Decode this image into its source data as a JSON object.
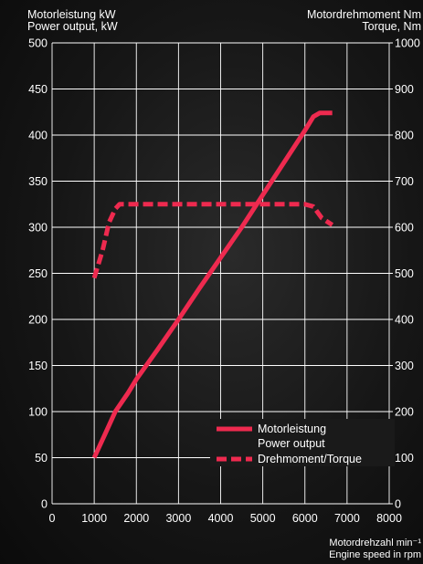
{
  "left_axis_title_line1": "Motorleistung kW",
  "left_axis_title_line2": "Power output, kW",
  "right_axis_title_line1": "Motordrehmoment Nm",
  "right_axis_title_line2": "Torque, Nm",
  "x_axis_title_line1": "Motordrehzahl min⁻¹",
  "x_axis_title_line2": "Engine speed in rpm",
  "colors": {
    "series": "#ee2a4f",
    "grid": "#ffffff",
    "text": "#ffffff"
  },
  "chart_data": {
    "type": "line",
    "xlim": [
      0,
      8000
    ],
    "ylim_left": [
      0,
      500
    ],
    "ylim_right": [
      0,
      1000
    ],
    "x_ticks": [
      "0",
      "1000",
      "2000",
      "3000",
      "4000",
      "5000",
      "6000",
      "7000",
      "8000"
    ],
    "y_left_ticks": [
      "0",
      "50",
      "100",
      "150",
      "200",
      "250",
      "300",
      "350",
      "400",
      "450",
      "500"
    ],
    "y_right_ticks": [
      "0",
      "100",
      "200",
      "300",
      "400",
      "500",
      "600",
      "700",
      "800",
      "900",
      "1000"
    ],
    "grid": true,
    "legend_position": "bottom-right",
    "series": [
      {
        "name": "Motorleistung",
        "name_line2": "Power output",
        "axis": "left",
        "style": "solid",
        "x": [
          1000,
          1250,
          1500,
          1800,
          2000,
          2500,
          3000,
          3500,
          4000,
          4500,
          5000,
          5500,
          6000,
          6200,
          6350,
          6650
        ],
        "y": [
          50,
          75,
          100,
          120,
          135,
          167,
          200,
          234,
          267,
          300,
          335,
          370,
          405,
          420,
          424,
          424
        ]
      },
      {
        "name": "Drehmoment/Torque",
        "axis": "right",
        "style": "dashed",
        "x": [
          1000,
          1200,
          1350,
          1500,
          1600,
          1800,
          2500,
          3500,
          4500,
          5500,
          6000,
          6200,
          6400,
          6650
        ],
        "y": [
          490,
          550,
          610,
          640,
          650,
          650,
          650,
          650,
          650,
          650,
          650,
          645,
          620,
          605
        ]
      }
    ]
  }
}
